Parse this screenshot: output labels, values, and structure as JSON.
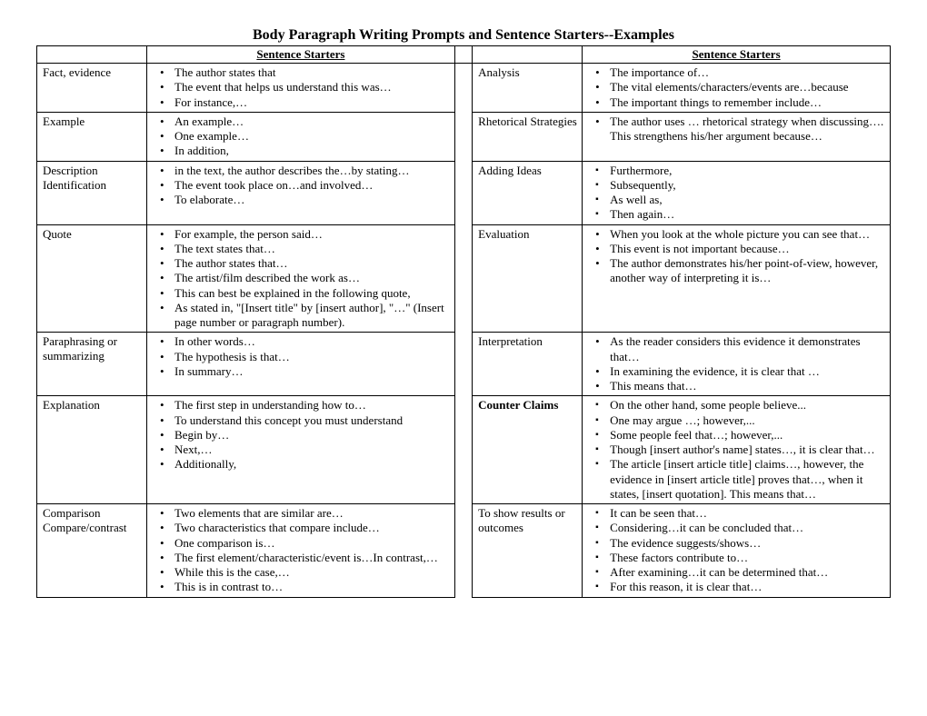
{
  "title": "Body Paragraph Writing Prompts and Sentence Starters--Examples",
  "header": "Sentence Starters",
  "rows": [
    {
      "leftLabel": "Fact, evidence",
      "leftBullet": "disc",
      "leftItems": [
        "The author states that",
        "The event that helps us understand this was…",
        "For instance,…"
      ],
      "rightLabel": "Analysis",
      "rightBullet": "disc",
      "rightItems": [
        "The importance of…",
        "The vital elements/characters/events are…because",
        "The important things to remember include…"
      ]
    },
    {
      "leftLabel": "Example",
      "leftBullet": "disc",
      "leftItems": [
        "An example…",
        "One example…",
        "In addition,"
      ],
      "rightLabel": "Rhetorical Strategies",
      "rightBullet": "disc",
      "rightItems": [
        "The author uses … rhetorical strategy when discussing…. This strengthens his/her argument because…"
      ]
    },
    {
      "leftLabel": "Description Identification",
      "leftBullet": "disc",
      "leftItems": [
        "in the text, the author describes the…by stating…",
        "The event took place on…and involved…",
        "To elaborate…"
      ],
      "rightLabel": "Adding Ideas",
      "rightBullet": "square",
      "rightItems": [
        "Furthermore,",
        "Subsequently,",
        "As well as,",
        "Then again…"
      ]
    },
    {
      "leftLabel": "Quote",
      "leftBullet": "disc",
      "leftItems": [
        "For example, the person said…",
        "The text states that…",
        "The author states that…",
        "The artist/film described the work as…",
        "This can best be explained in the following quote,",
        "As stated in, \"[Insert title\" by [insert author], \"…\" (Insert page number or paragraph number)."
      ],
      "rightLabel": "Evaluation",
      "rightBullet": "disc",
      "rightItems": [
        "When you look at the whole picture you can see that…",
        "This event is not important because…",
        "The author demonstrates his/her point-of-view, however, another way of interpreting it is…"
      ]
    },
    {
      "leftLabel": "Paraphrasing or summarizing",
      "leftBullet": "disc",
      "leftItems": [
        "In other words…",
        "The hypothesis is that…",
        "In summary…"
      ],
      "rightLabel": "Interpretation",
      "rightBullet": "disc",
      "rightItems": [
        "As the reader considers this evidence it demonstrates that…",
        "In examining the evidence, it is clear that …",
        "This means that…"
      ]
    },
    {
      "leftLabel": "Explanation",
      "leftBullet": "disc",
      "leftItems": [
        "The first step in understanding how to…",
        "To understand this concept you must understand",
        "Begin by…",
        "Next,…",
        "Additionally,"
      ],
      "rightLabel": "Counter Claims",
      "rightLabelBold": true,
      "rightBullet": "square",
      "rightItems": [
        "On the other hand, some people believe...",
        "One may argue …; however,...",
        "Some people feel that…; however,...",
        "Though [insert author's name] states…, it is clear that…",
        "The article [insert article title] claims…, however, the evidence in [insert article title] proves that…, when it states, [insert quotation]. This means that…"
      ]
    },
    {
      "leftLabel": "Comparison Compare/contrast",
      "leftBullet": "disc",
      "leftItems": [
        "Two elements that are similar are…",
        "Two characteristics that compare include…",
        "One comparison is…",
        "The first element/characteristic/event is…In contrast,…",
        "While this is the case,…",
        "This is in contrast to…"
      ],
      "rightLabel": "To show results or outcomes",
      "rightBullet": "square",
      "rightItems": [
        "It can be seen that…",
        "Considering…it can be concluded that…",
        "The evidence suggests/shows…",
        "These factors contribute to…",
        "After examining…it can be determined that…",
        "For this reason, it is clear that…"
      ]
    }
  ]
}
